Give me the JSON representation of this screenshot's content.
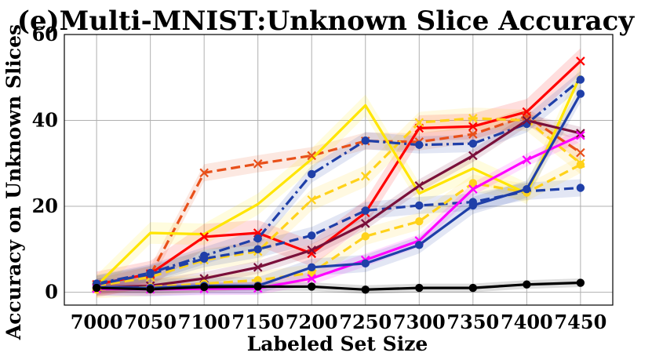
{
  "chart_data": {
    "type": "line",
    "title": "(e)Multi-MNIST:Unknown Slice Accuracy",
    "xlabel": "Labeled Set Size",
    "ylabel": "Accuracy on Unknown Slices",
    "x": [
      7000,
      7050,
      7100,
      7150,
      7200,
      7250,
      7300,
      7350,
      7400,
      7450
    ],
    "xlim": [
      6970,
      7480
    ],
    "ylim": [
      -3,
      60
    ],
    "yticks": [
      0,
      20,
      40,
      60
    ],
    "grid": true,
    "series": [
      {
        "values": [
          1.2,
          4.0,
          27.8,
          29.9,
          31.8,
          35.2,
          35.0,
          36.8,
          41.0,
          32.5
        ],
        "color": "#e8501a",
        "dash": "dashed",
        "marker": "x",
        "band": 2.0
      },
      {
        "values": [
          1.8,
          4.3,
          12.9,
          13.8,
          9.0,
          18.5,
          38.2,
          38.6,
          42.0,
          53.8
        ],
        "color": "#ff0000",
        "dash": "solid",
        "marker": "x",
        "band": 3.0
      },
      {
        "values": [
          1.5,
          13.8,
          13.5,
          20.5,
          31.0,
          43.5,
          23.0,
          28.8,
          23.0,
          50.5
        ],
        "color": "#ffe500",
        "dash": "solid",
        "marker": "none",
        "band": 2.5
      },
      {
        "values": [
          1.5,
          3.5,
          7.5,
          9.5,
          21.5,
          27.0,
          39.5,
          40.5,
          40.0,
          30.0
        ],
        "color": "#ffd21a",
        "dash": "dashed",
        "marker": "x",
        "band": 2.5
      },
      {
        "values": [
          2.0,
          4.5,
          8.5,
          12.5,
          27.5,
          35.3,
          34.3,
          34.6,
          39.2,
          49.5
        ],
        "color": "#1f3fa8",
        "dash": "dashdot",
        "marker": "o",
        "band": 2.0
      },
      {
        "values": [
          1.8,
          4.2,
          7.8,
          10.0,
          13.2,
          19.0,
          20.2,
          21.0,
          23.5,
          24.3
        ],
        "color": "#1f3fa8",
        "dash": "dashed",
        "marker": "o",
        "band": 2.0
      },
      {
        "values": [
          1.0,
          1.5,
          3.2,
          5.8,
          9.8,
          16.0,
          24.8,
          31.8,
          40.0,
          37.0
        ],
        "color": "#7a0f3a",
        "dash": "solid",
        "marker": "x",
        "band": 1.5
      },
      {
        "values": [
          0.6,
          1.2,
          2.0,
          2.8,
          4.5,
          13.0,
          16.5,
          25.4,
          23.2,
          29.7
        ],
        "color": "#ffd21a",
        "dash": "dashed",
        "marker": "o",
        "band": 2.0
      },
      {
        "values": [
          0.8,
          0.7,
          0.8,
          0.9,
          3.2,
          7.5,
          12.0,
          24.0,
          30.8,
          36.5
        ],
        "color": "#ff00ff",
        "dash": "solid",
        "marker": "x",
        "band": 1.5
      },
      {
        "values": [
          1.2,
          1.0,
          1.5,
          1.5,
          5.8,
          6.7,
          11.0,
          20.2,
          24.0,
          46.2
        ],
        "color": "#1f3fa8",
        "dash": "solid",
        "marker": "o",
        "band": 2.0
      },
      {
        "values": [
          1.0,
          0.7,
          1.2,
          1.3,
          1.3,
          0.6,
          1.0,
          1.0,
          1.8,
          2.2
        ],
        "color": "#000000",
        "dash": "solid",
        "marker": "o",
        "band": 1.0
      }
    ]
  }
}
